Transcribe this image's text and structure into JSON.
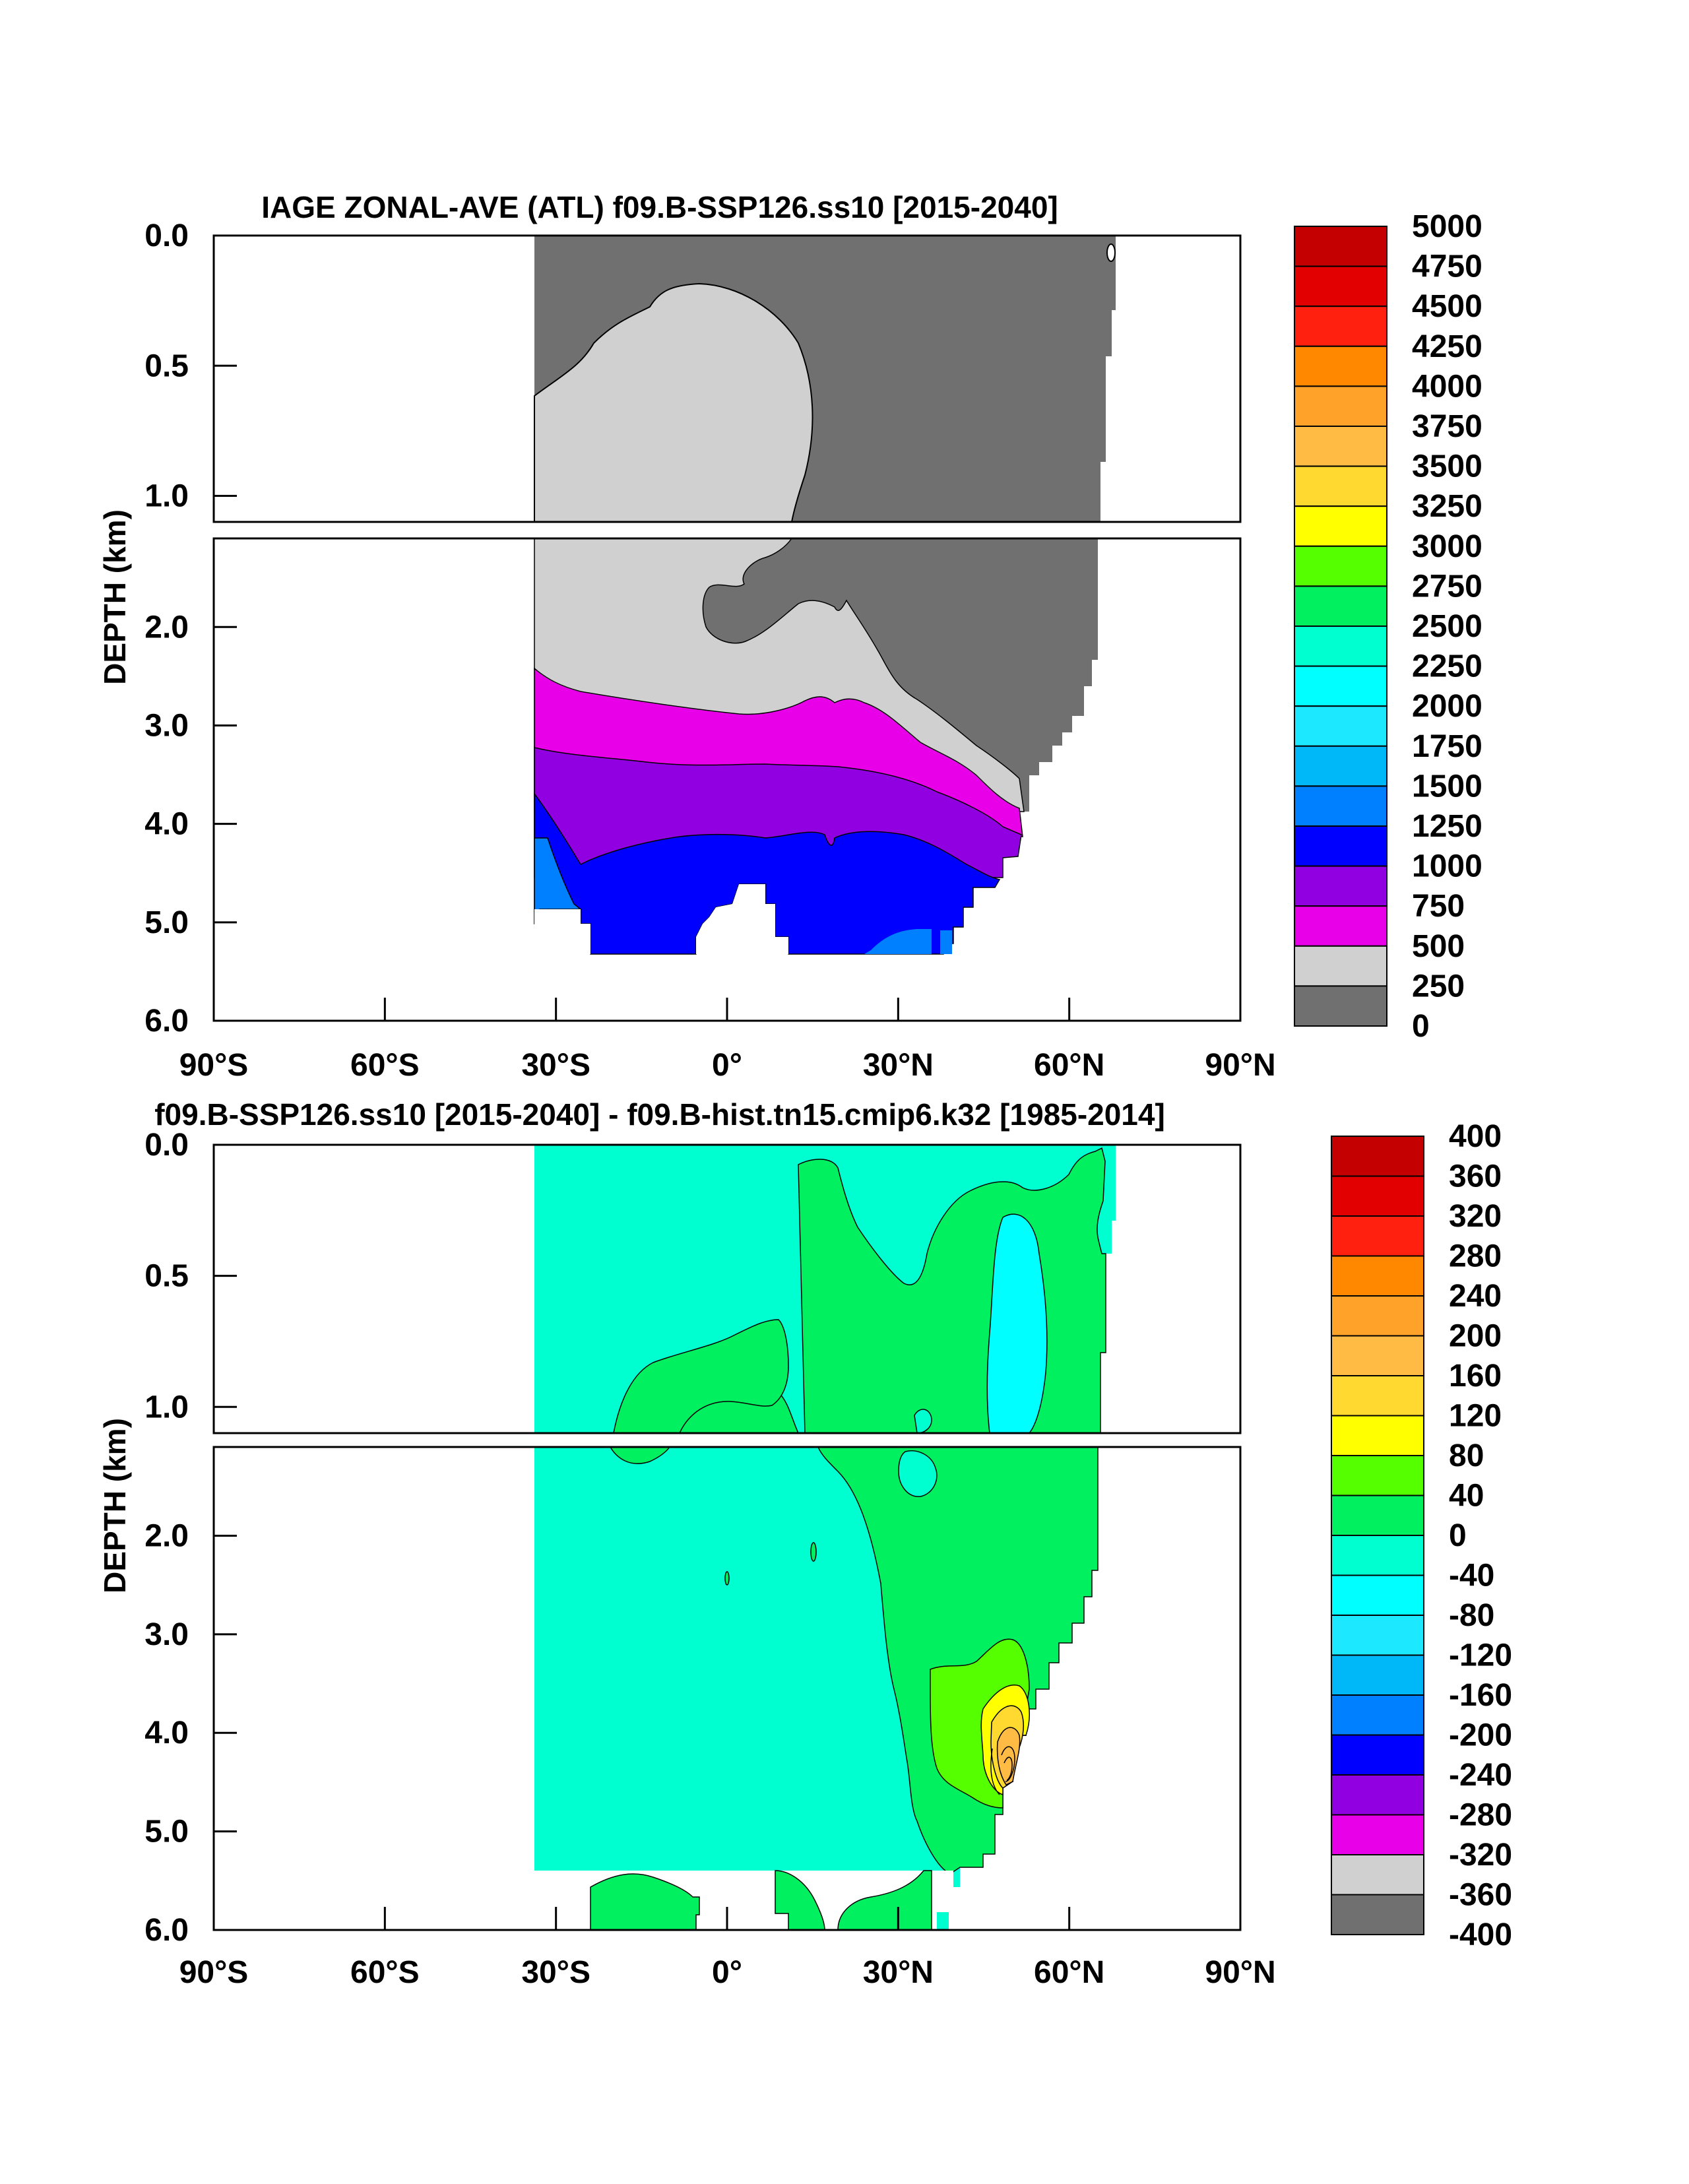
{
  "chart_data": [
    {
      "type": "heatmap",
      "title": "IAGE ZONAL-AVE (ATL) f09.B-SSP126.ss10 [2015-2040]",
      "ylabel": "DEPTH (km)",
      "xlabel": "",
      "x_ticks": [
        "90°S",
        "60°S",
        "30°S",
        "0°",
        "30°N",
        "60°N",
        "90°N"
      ],
      "x_tick_values": [
        -90,
        -60,
        -30,
        0,
        30,
        60,
        90
      ],
      "xlim": [
        -90,
        90
      ],
      "ylim": [
        0,
        6
      ],
      "upper_panel": {
        "range_km": [
          0,
          1.1
        ],
        "ticks": [
          "0.0",
          "0.5",
          "1.0"
        ],
        "tick_values": [
          0,
          0.5,
          1.0
        ]
      },
      "lower_panel": {
        "range_km": [
          1.1,
          6.0
        ],
        "ticks": [
          "2.0",
          "3.0",
          "4.0",
          "5.0",
          "6.0"
        ],
        "tick_values": [
          2,
          3,
          4,
          5,
          6
        ]
      },
      "colorbar": {
        "labels": [
          "5000",
          "4750",
          "4500",
          "4250",
          "4000",
          "3750",
          "3500",
          "3250",
          "3000",
          "2750",
          "2500",
          "2250",
          "2000",
          "1750",
          "1500",
          "1250",
          "1000",
          "750",
          "500",
          "250",
          "0"
        ],
        "colors": [
          "#c40000",
          "#e20000",
          "#ff2010",
          "#ff8800",
          "#ffa22a",
          "#ffbb44",
          "#ffd830",
          "#ffff00",
          "#55ff00",
          "#00f060",
          "#00ffd0",
          "#00ffff",
          "#1ce8ff",
          "#00b8f8",
          "#0080ff",
          "#0000ff",
          "#9000e0",
          "#e800e8",
          "#d0d0d0",
          "#707070"
        ]
      },
      "regions": [
        {
          "name": "0-250 (surface/North Atlantic)",
          "color": "#707070"
        },
        {
          "name": "250-500",
          "color": "#d0d0d0"
        },
        {
          "name": "500-750",
          "color": "#e800e8"
        },
        {
          "name": "750-1000",
          "color": "#9000e0"
        },
        {
          "name": "1000-1250",
          "color": "#0000ff"
        },
        {
          "name": "1250-1500",
          "color": "#0080ff"
        }
      ]
    },
    {
      "type": "heatmap",
      "title": "f09.B-SSP126.ss10 [2015-2040] - f09.B-hist.tn15.cmip6.k32 [1985-2014]",
      "ylabel": "DEPTH (km)",
      "xlabel": "",
      "x_ticks": [
        "90°S",
        "60°S",
        "30°S",
        "0°",
        "30°N",
        "60°N",
        "90°N"
      ],
      "x_tick_values": [
        -90,
        -60,
        -30,
        0,
        30,
        60,
        90
      ],
      "xlim": [
        -90,
        90
      ],
      "ylim": [
        0,
        6
      ],
      "upper_panel": {
        "range_km": [
          0,
          1.1
        ],
        "ticks": [
          "0.0",
          "0.5",
          "1.0"
        ],
        "tick_values": [
          0,
          0.5,
          1.0
        ]
      },
      "lower_panel": {
        "range_km": [
          1.1,
          6.0
        ],
        "ticks": [
          "2.0",
          "3.0",
          "4.0",
          "5.0",
          "6.0"
        ],
        "tick_values": [
          2,
          3,
          4,
          5,
          6
        ]
      },
      "colorbar": {
        "labels": [
          "400",
          "360",
          "320",
          "280",
          "240",
          "200",
          "160",
          "120",
          "80",
          "40",
          "0",
          "-40",
          "-80",
          "-120",
          "-160",
          "-200",
          "-240",
          "-280",
          "-320",
          "-360",
          "-400"
        ],
        "colors": [
          "#c40000",
          "#e20000",
          "#ff2010",
          "#ff8800",
          "#ffa22a",
          "#ffbb44",
          "#ffd830",
          "#ffff00",
          "#55ff00",
          "#00f060",
          "#00ffd0",
          "#00ffff",
          "#1ce8ff",
          "#00b8f8",
          "#0080ff",
          "#0000ff",
          "#9000e0",
          "#e800e8",
          "#d0d0d0",
          "#707070"
        ]
      },
      "regions": [
        {
          "name": "-40-0 (background)",
          "color": "#00ffd0"
        },
        {
          "name": "0-40",
          "color": "#00f060"
        },
        {
          "name": "40-80",
          "color": "#55ff00"
        },
        {
          "name": "80-120",
          "color": "#ffff00"
        },
        {
          "name": "120-160",
          "color": "#ffd830"
        },
        {
          "name": "160-200",
          "color": "#ffbb44"
        },
        {
          "name": "-80--40",
          "color": "#00ffff"
        }
      ]
    }
  ]
}
